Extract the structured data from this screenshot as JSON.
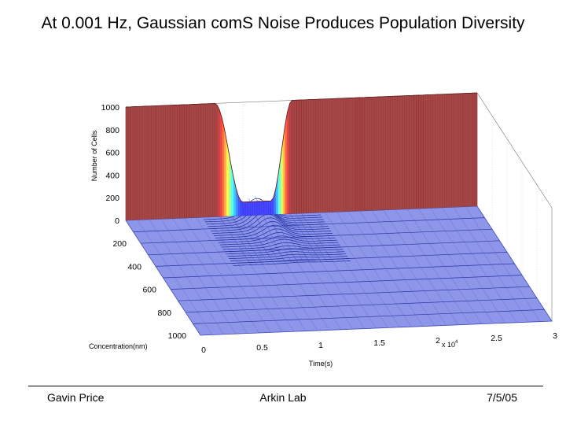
{
  "slide": {
    "title": "At 0.001 Hz, Gaussian comS Noise Produces Population Diversity",
    "footer_left": "Gavin Price",
    "footer_center": "Arkin Lab",
    "footer_right": "7/5/05"
  },
  "chart_data": {
    "type": "surface",
    "title": "",
    "zlabel": "Number of Cells",
    "xlabel": "Time(s)",
    "ylabel": "Concentration(nm)",
    "x_exponent_label": "x 10",
    "x_exponent_power": "4",
    "x_ticks": [
      "0",
      "0.5",
      "1",
      "1.5",
      "2",
      "2.5",
      "3"
    ],
    "y_ticks": [
      "200",
      "400",
      "600",
      "800",
      "1000"
    ],
    "z_ticks": [
      "0",
      "200",
      "400",
      "600",
      "800",
      "1000"
    ],
    "xlim": [
      0,
      30000
    ],
    "ylim": [
      0,
      1000
    ],
    "zlim": [
      0,
      1000
    ],
    "colormap": "jet",
    "grid": true,
    "description_of_surface": {
      "initial_population": {
        "concentration_bin": 0,
        "count": 1000,
        "time_range": [
          0,
          7500
        ]
      },
      "final_population": {
        "concentration_bin": 0,
        "count": 1000,
        "time_range": [
          14000,
          30000
        ]
      },
      "transient_spread": {
        "time_center": 11000,
        "peak_count": 170,
        "concentration_range": [
          0,
          400
        ]
      }
    }
  }
}
